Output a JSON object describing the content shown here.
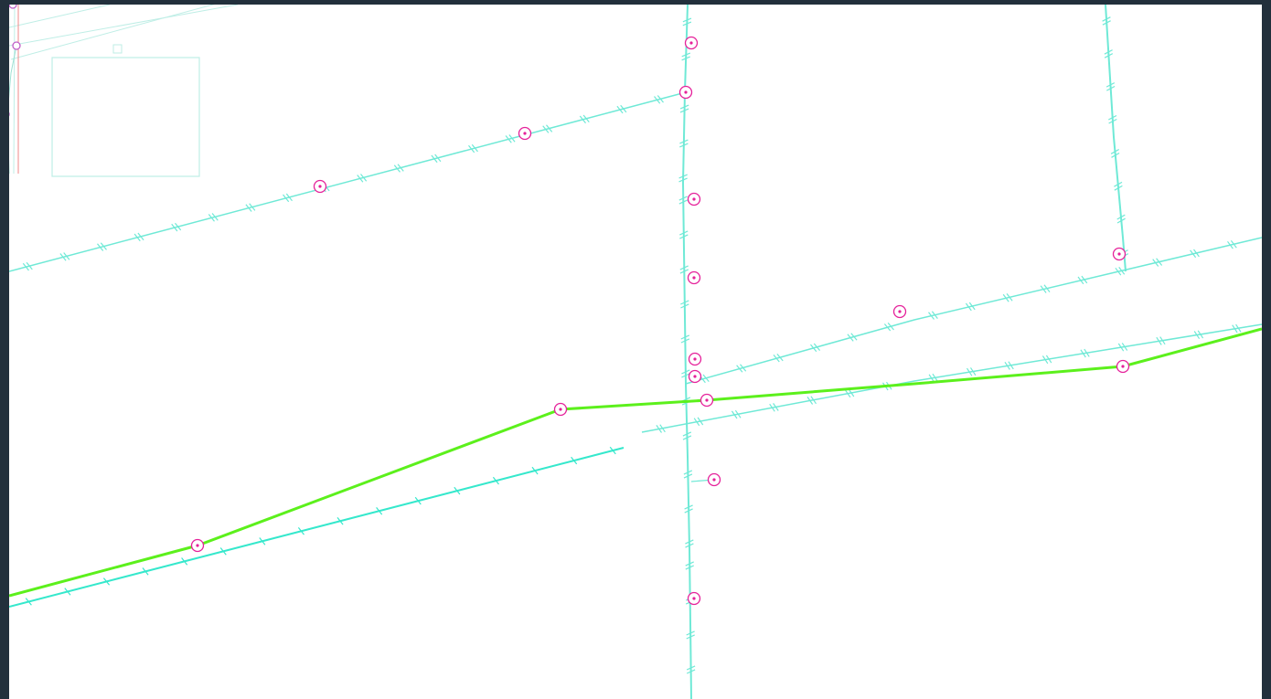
{
  "map": {
    "colors": {
      "background": "#ffffff",
      "frame": "#22303c",
      "hedge_line": "#6fe9d6",
      "hedge_line_bright": "#35e8cc",
      "route_line": "#5cf01c",
      "node_marker": "#e5219a",
      "overview_line": "#bfeee6",
      "overview_red": "#f08a8a",
      "overview_marker": "#c060c8"
    },
    "icons": {
      "node": "circle-dot-icon",
      "overview_node": "circle-icon"
    }
  }
}
